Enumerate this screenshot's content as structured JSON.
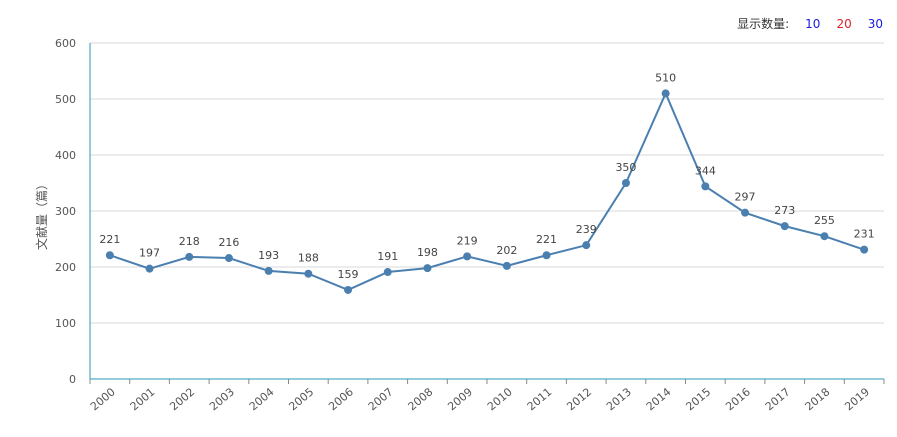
{
  "controls": {
    "label": "显示数量:",
    "options": [
      {
        "label": "10",
        "color": "#1a1adc"
      },
      {
        "label": "20",
        "color": "#e0202a"
      },
      {
        "label": "30",
        "color": "#1a1adc"
      }
    ]
  },
  "chart_data": {
    "type": "line",
    "title": "",
    "xlabel": "",
    "ylabel": "文献量（篇）",
    "ylim": [
      0,
      600
    ],
    "yticks": [
      "0",
      "100",
      "200",
      "300",
      "400",
      "500",
      "600"
    ],
    "categories": [
      "2000",
      "2001",
      "2002",
      "2003",
      "2004",
      "2005",
      "2006",
      "2007",
      "2008",
      "2009",
      "2010",
      "2011",
      "2012",
      "2013",
      "2014",
      "2015",
      "2016",
      "2017",
      "2018",
      "2019"
    ],
    "values": [
      221,
      197,
      218,
      216,
      193,
      188,
      159,
      191,
      198,
      219,
      202,
      221,
      239,
      350,
      510,
      344,
      297,
      273,
      255,
      231
    ],
    "grid": true,
    "color": "#4a7fb0",
    "axis_color": "#2a9ab8"
  }
}
